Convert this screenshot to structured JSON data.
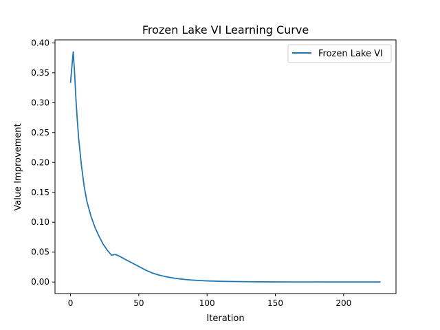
{
  "chart_data": {
    "type": "line",
    "title": "Frozen Lake VI Learning Curve",
    "xlabel": "Iteration",
    "ylabel": "Value Improvement",
    "xlim": [
      -11.35,
      238.35
    ],
    "ylim": [
      -0.0193,
      0.405
    ],
    "xticks": [
      0,
      50,
      100,
      150,
      200
    ],
    "yticks": [
      0.0,
      0.05,
      0.1,
      0.15,
      0.2,
      0.25,
      0.3,
      0.35,
      0.4
    ],
    "ytick_labels": [
      "0.00",
      "0.05",
      "0.10",
      "0.15",
      "0.20",
      "0.25",
      "0.30",
      "0.35",
      "0.40"
    ],
    "xtick_labels": [
      "0",
      "50",
      "100",
      "150",
      "200"
    ],
    "grid": false,
    "legend": {
      "placement": "top-right"
    },
    "series": [
      {
        "name": "Frozen Lake VI",
        "color": "#1f77b4",
        "x": [
          0,
          1,
          2,
          3,
          4,
          5,
          6,
          8,
          10,
          12,
          15,
          18,
          21,
          24,
          27,
          30,
          33,
          36,
          40,
          45,
          50,
          55,
          60,
          65,
          70,
          75,
          80,
          85,
          90,
          95,
          100,
          110,
          120,
          130,
          140,
          150,
          160,
          170,
          180,
          190,
          200,
          210,
          220,
          227
        ],
        "y": [
          0.333,
          0.36,
          0.385,
          0.35,
          0.305,
          0.27,
          0.24,
          0.195,
          0.16,
          0.135,
          0.11,
          0.091,
          0.076,
          0.063,
          0.053,
          0.045,
          0.046,
          0.043,
          0.038,
          0.032,
          0.026,
          0.02,
          0.015,
          0.0115,
          0.0088,
          0.0068,
          0.0052,
          0.004,
          0.0031,
          0.0024,
          0.0019,
          0.0012,
          0.0008,
          0.0005,
          0.0003,
          0.0002,
          0.00013,
          9e-05,
          6e-05,
          4e-05,
          3e-05,
          2e-05,
          1e-05,
          1e-05
        ]
      }
    ]
  }
}
